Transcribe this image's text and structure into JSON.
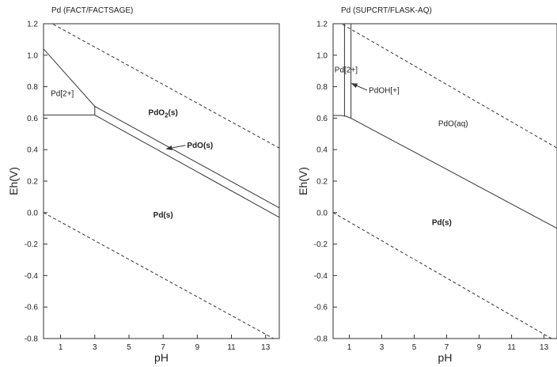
{
  "chart_data": [
    {
      "type": "line",
      "title": "Pd (FACT/FACTSAGE)",
      "xlabel": "pH",
      "ylabel": "Eh(V)",
      "xlim": [
        0,
        13.8
      ],
      "ylim": [
        -0.8,
        1.2
      ],
      "xticks": [
        1,
        3,
        5,
        7,
        9,
        11,
        13
      ],
      "yticks": [
        -0.8,
        -0.6,
        -0.4,
        -0.2,
        0.0,
        0.2,
        0.4,
        0.6,
        0.8,
        1.0,
        1.2
      ],
      "ytick_labels": [
        "-0.8",
        "-0.6",
        "-0.4",
        "-0.2",
        "0.0",
        "0.2",
        "0.4",
        "0.6",
        "0.8",
        "1.0",
        "1.2"
      ],
      "grid": false,
      "series": [
        {
          "style": "dashed",
          "points": [
            [
              0,
              1.23
            ],
            [
              13.8,
              0.41
            ]
          ]
        },
        {
          "style": "dashed",
          "points": [
            [
              0,
              0.0
            ],
            [
              13.8,
              -0.82
            ]
          ]
        },
        {
          "style": "solid",
          "points": [
            [
              0,
              1.04
            ],
            [
              3.0,
              0.675
            ]
          ]
        },
        {
          "style": "solid",
          "points": [
            [
              0,
              0.62
            ],
            [
              3.0,
              0.62
            ]
          ]
        },
        {
          "style": "solid",
          "points": [
            [
              3.0,
              0.62
            ],
            [
              3.0,
              0.675
            ]
          ]
        },
        {
          "style": "solid",
          "points": [
            [
              3.0,
              0.675
            ],
            [
              13.8,
              0.03
            ]
          ]
        },
        {
          "style": "solid",
          "points": [
            [
              3.0,
              0.62
            ],
            [
              13.8,
              -0.03
            ]
          ]
        }
      ],
      "annotations": [
        {
          "text": "Pd[2+]",
          "x": 1.1,
          "y": 0.74,
          "bold": false
        },
        {
          "text": "PdO",
          "sub": "2",
          "suffix": "(s)",
          "x": 7.0,
          "y": 0.62,
          "bold": true
        },
        {
          "text": "PdO(s)",
          "x": 8.4,
          "y": 0.41,
          "bold": true,
          "arrow_to": [
            7.2,
            0.405
          ]
        },
        {
          "text": "Pd(s)",
          "x": 7.0,
          "y": -0.03,
          "bold": true
        }
      ]
    },
    {
      "type": "line",
      "title": "Pd (SUPCRT/FLASK-AQ)",
      "xlabel": "pH",
      "ylabel": "Eh(V)",
      "xlim": [
        0,
        13.8
      ],
      "ylim": [
        -0.8,
        1.2
      ],
      "xticks": [
        1,
        3,
        5,
        7,
        9,
        11,
        13
      ],
      "yticks": [
        -0.8,
        -0.6,
        -0.4,
        -0.2,
        0.0,
        0.2,
        0.4,
        0.6,
        0.8,
        1.0,
        1.2
      ],
      "ytick_labels": [
        "-0.8",
        "-0.6",
        "-0.4",
        "-0.2",
        "0.0",
        "0.2",
        "0.4",
        "0.6",
        "0.8",
        "1.0",
        "1.2"
      ],
      "grid": false,
      "series": [
        {
          "style": "dashed",
          "points": [
            [
              0,
              1.23
            ],
            [
              13.8,
              0.41
            ]
          ]
        },
        {
          "style": "dashed",
          "points": [
            [
              0,
              0.0
            ],
            [
              13.8,
              -0.82
            ]
          ]
        },
        {
          "style": "solid",
          "points": [
            [
              0.7,
              1.2
            ],
            [
              0.7,
              0.61
            ]
          ]
        },
        {
          "style": "solid",
          "points": [
            [
              1.1,
              1.2
            ],
            [
              1.1,
              0.6
            ]
          ]
        },
        {
          "style": "solid",
          "points": [
            [
              0,
              0.617
            ],
            [
              0.5,
              0.617
            ],
            [
              0.8,
              0.612
            ],
            [
              1.1,
              0.6
            ],
            [
              13.8,
              -0.1
            ]
          ]
        }
      ],
      "annotations": [
        {
          "text": "Pd[2+]",
          "x": 0.8,
          "y": 0.89,
          "bold": false
        },
        {
          "text": "PdOH[+]",
          "x": 2.2,
          "y": 0.76,
          "bold": false,
          "arrow_to": [
            1.15,
            0.82
          ]
        },
        {
          "text": "PdO(aq)",
          "x": 7.4,
          "y": 0.55,
          "bold": false
        },
        {
          "text": "Pd(s)",
          "x": 6.7,
          "y": -0.08,
          "bold": true
        }
      ]
    }
  ]
}
